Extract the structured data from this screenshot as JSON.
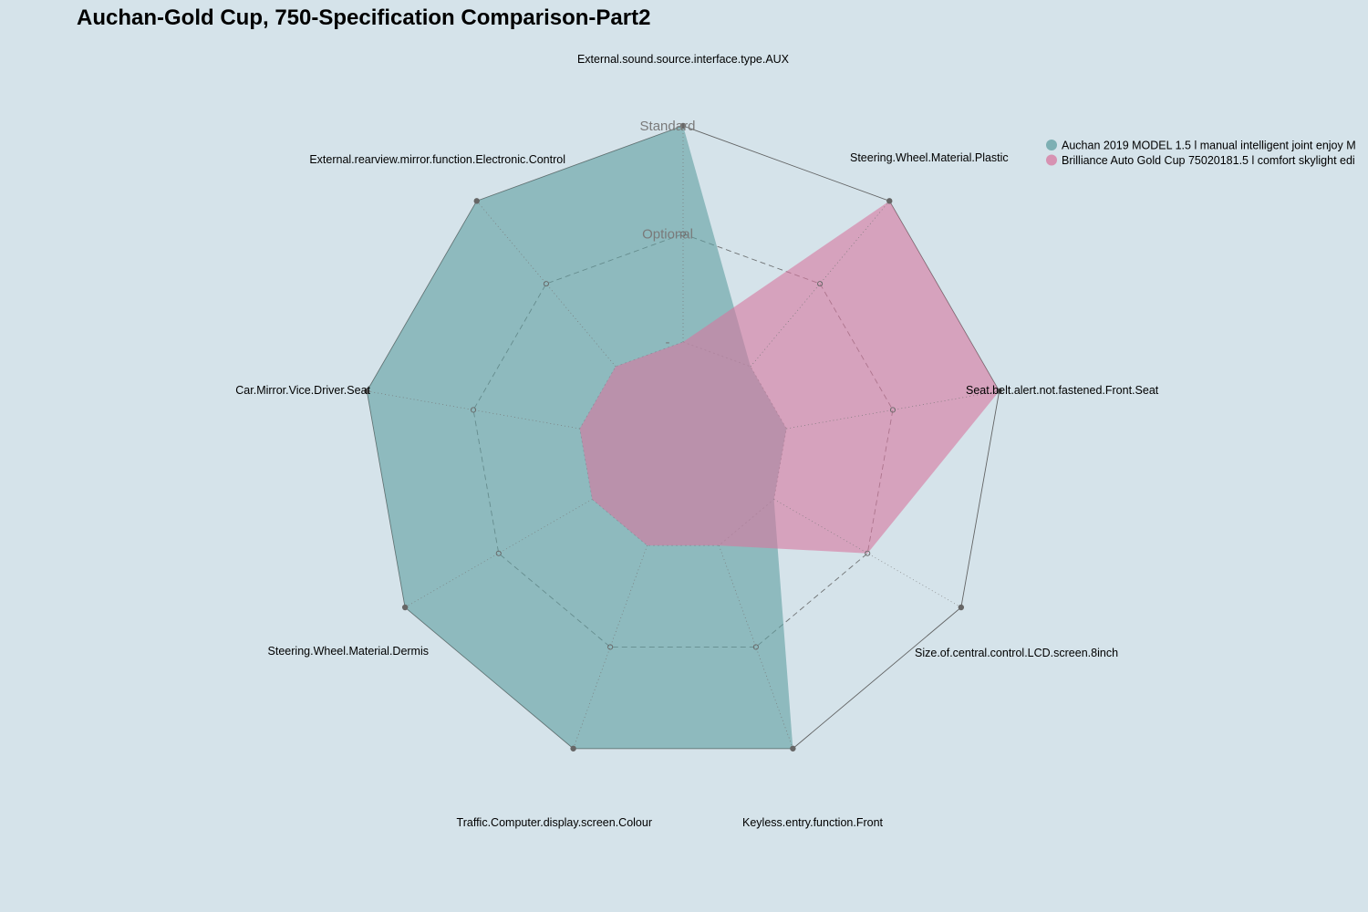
{
  "chart_data": {
    "type": "radar",
    "title": "Auchan-Gold Cup, 750-Specification Comparison-Part2",
    "axes": [
      "External.sound.source.interface.type.AUX",
      "Steering.Wheel.Material.Plastic",
      "Seat.belt.alert.not.fastened.Front.Seat",
      "Size.of.central.control.LCD.screen.8inch",
      "Keyless.entry.function.Front",
      "Traffic.Computer.display.screen.Colour",
      "Steering.Wheel.Material.Dermis",
      "Car.Mirror.Vice.Driver.Seat",
      "External.rearview.mirror.function.Electronic.Control"
    ],
    "levels": [
      "-",
      "Optional",
      "Standard"
    ],
    "range": [
      0,
      2
    ],
    "series": [
      {
        "name": "Auchan 2019 MODEL 1.5 l manual intelligent joint enjoy M",
        "color": "#5f9ea0",
        "values": [
          2,
          0,
          0,
          0,
          2,
          2,
          2,
          2,
          2
        ]
      },
      {
        "name": "Brilliance Auto Gold Cup 75020181.5 l comfort skylight edi",
        "color": "#d7779f",
        "values": [
          0,
          2,
          2,
          1,
          0,
          0,
          0,
          0,
          0
        ]
      }
    ]
  }
}
